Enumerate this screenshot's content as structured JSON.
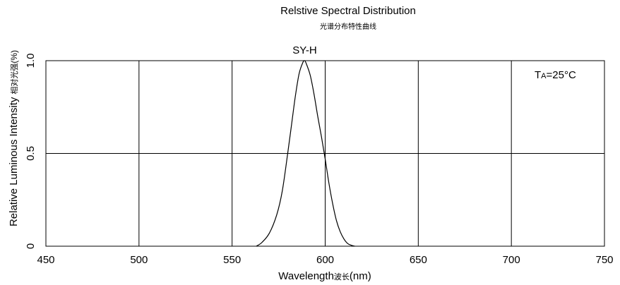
{
  "chart_data": {
    "type": "line",
    "title": "Relstive Spectral Distribution",
    "subtitle": "光谱分布特性曲线",
    "xlabel": "Wavelength",
    "xlabel_cn": "波长",
    "xlabel_unit": "(nm)",
    "ylabel": "Relative Luminous Intensity",
    "ylabel_cn": "相对光强",
    "ylabel_unit": "(%)",
    "xlim": [
      450,
      750
    ],
    "ylim": [
      0,
      1.0
    ],
    "x_ticks": [
      450,
      500,
      550,
      600,
      650,
      700,
      750
    ],
    "x_tick_labels": [
      "450",
      "500",
      "550",
      "600",
      "650",
      "700",
      "750"
    ],
    "y_ticks": [
      0,
      0.5,
      1.0
    ],
    "y_tick_labels": [
      "0",
      "0.5",
      "1.0"
    ],
    "grid": true,
    "annotations": [
      {
        "text_main": "T",
        "text_sub": "A",
        "text_rest": "=25°C"
      }
    ],
    "series": [
      {
        "name": "SY-H",
        "x": [
          563,
          566,
          570,
          574,
          577,
          580,
          582,
          584,
          586,
          588,
          589,
          590,
          592,
          594,
          596,
          598,
          600,
          602,
          604,
          606,
          608,
          610,
          612,
          614,
          616
        ],
        "y": [
          0.0,
          0.02,
          0.07,
          0.17,
          0.3,
          0.51,
          0.66,
          0.81,
          0.93,
          0.99,
          1.0,
          0.98,
          0.92,
          0.82,
          0.7,
          0.59,
          0.47,
          0.34,
          0.23,
          0.14,
          0.08,
          0.04,
          0.015,
          0.005,
          0.0
        ]
      }
    ]
  }
}
